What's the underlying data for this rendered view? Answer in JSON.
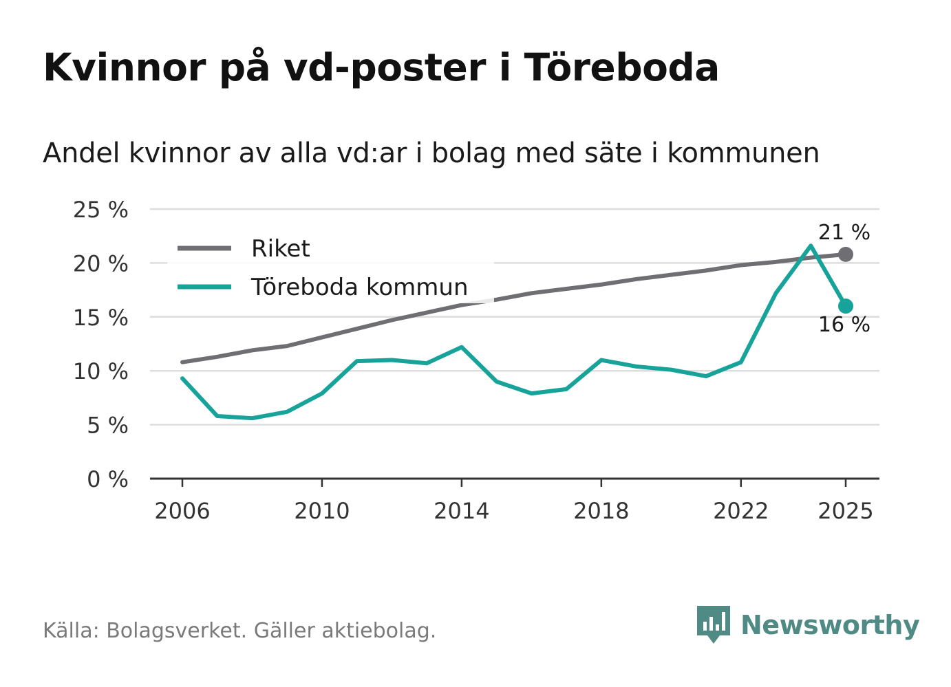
{
  "title": "Kvinnor på vd-poster i Töreboda",
  "subtitle": "Andel kvinnor av alla vd:ar i bolag med säte i kommunen",
  "source": "Källa: Bolagsverket. Gäller aktiebolag.",
  "brand": {
    "name": "Newsworthy",
    "icon": "newsworthy-logo-icon",
    "color": "#4f8a84"
  },
  "colors": {
    "riket": "#6f6e73",
    "kommun": "#17a39a",
    "grid": "#dddddd",
    "axis": "#333333"
  },
  "chart_data": {
    "type": "line",
    "title": "Kvinnor på vd-poster i Töreboda",
    "subtitle": "Andel kvinnor av alla vd:ar i bolag med säte i kommunen",
    "xlabel": "",
    "ylabel": "",
    "x": [
      2006,
      2007,
      2008,
      2009,
      2010,
      2011,
      2012,
      2013,
      2014,
      2015,
      2016,
      2017,
      2018,
      2019,
      2020,
      2021,
      2022,
      2023,
      2024,
      2025
    ],
    "xticks": [
      2006,
      2010,
      2014,
      2018,
      2022,
      2025
    ],
    "xtick_labels": [
      "2006",
      "2010",
      "2014",
      "2018",
      "2022",
      "2025"
    ],
    "ylim": [
      0,
      25
    ],
    "yticks": [
      0,
      5,
      10,
      15,
      20,
      25
    ],
    "ytick_labels": [
      "0 %",
      "5 %",
      "10 %",
      "15 %",
      "20 %",
      "25 %"
    ],
    "grid": true,
    "legend_position": "top-left",
    "series": [
      {
        "name": "Riket",
        "color": "#6f6e73",
        "values": [
          10.8,
          11.3,
          11.9,
          12.3,
          13.1,
          13.9,
          14.7,
          15.4,
          16.1,
          16.6,
          17.2,
          17.6,
          18.0,
          18.5,
          18.9,
          19.3,
          19.8,
          20.1,
          20.5,
          20.8
        ],
        "end_label": "21 %"
      },
      {
        "name": "Töreboda kommun",
        "color": "#17a39a",
        "values": [
          9.3,
          5.8,
          5.6,
          6.2,
          7.9,
          10.9,
          11.0,
          10.7,
          12.2,
          9.0,
          7.9,
          8.3,
          11.0,
          10.4,
          10.1,
          9.5,
          10.8,
          17.2,
          21.6,
          16.0
        ],
        "end_label": "16 %"
      }
    ]
  }
}
